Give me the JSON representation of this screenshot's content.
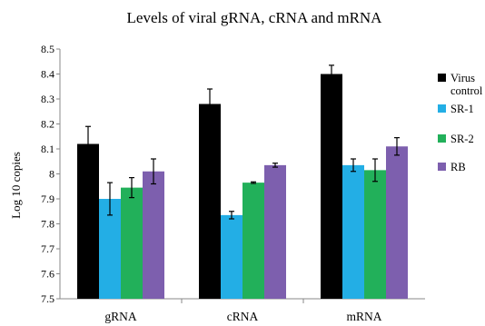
{
  "chart_data": {
    "type": "bar",
    "title": "Levels of viral gRNA, cRNA and mRNA",
    "xlabel": "",
    "ylabel": "Log 10 copies",
    "ylim": [
      7.5,
      8.5
    ],
    "yticks": [
      "7.5",
      "7.6",
      "7.7",
      "7.8",
      "7.9",
      "8",
      "8.1",
      "8.2",
      "8.3",
      "8.4",
      "8.5"
    ],
    "categories": [
      "gRNA",
      "cRNA",
      "mRNA"
    ],
    "grid": false,
    "legend_position": "right",
    "series": [
      {
        "name": "Virus control",
        "legend_lines": [
          "Virus",
          "control"
        ],
        "color": "#000000",
        "values": [
          8.12,
          8.28,
          8.4
        ],
        "errors": [
          0.07,
          0.06,
          0.035
        ]
      },
      {
        "name": "SR-1",
        "legend_lines": [
          "SR-1"
        ],
        "color": "#23aee5",
        "values": [
          7.9,
          7.835,
          8.035
        ],
        "errors": [
          0.065,
          0.015,
          0.025
        ]
      },
      {
        "name": "SR-2",
        "legend_lines": [
          "SR-2"
        ],
        "color": "#22b05a",
        "values": [
          7.945,
          7.965,
          8.015
        ],
        "errors": [
          0.04,
          0.003,
          0.045
        ]
      },
      {
        "name": "RB",
        "legend_lines": [
          "RB"
        ],
        "color": "#7d5fae",
        "values": [
          8.01,
          8.035,
          8.11
        ],
        "errors": [
          0.05,
          0.008,
          0.035
        ]
      }
    ]
  }
}
